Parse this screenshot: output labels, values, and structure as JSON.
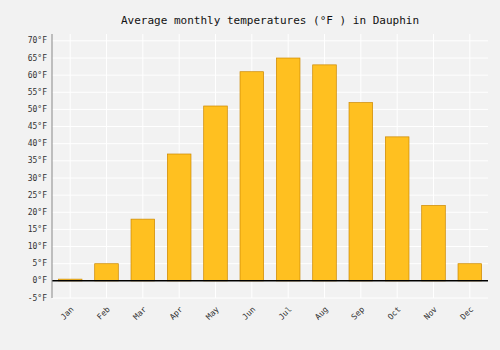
{
  "chart_data": {
    "type": "bar",
    "title": "Average monthly temperatures (°F ) in Dauphin",
    "categories": [
      "Jan",
      "Feb",
      "Mar",
      "Apr",
      "May",
      "Jun",
      "Jul",
      "Aug",
      "Sep",
      "Oct",
      "Nov",
      "Dec"
    ],
    "values": [
      0.5,
      5.0,
      18.0,
      37.0,
      51.0,
      61.0,
      65.0,
      63.0,
      52.0,
      42.0,
      22.0,
      5.0
    ],
    "color": "#FFC020",
    "ylim": [
      -5,
      72
    ],
    "yticks": [
      {
        "value": -5,
        "label": "-5°F"
      },
      {
        "value": 0,
        "label": "0°F"
      },
      {
        "value": 5,
        "label": "5°F"
      },
      {
        "value": 10,
        "label": "10°F"
      },
      {
        "value": 15,
        "label": "15°F"
      },
      {
        "value": 20,
        "label": "20°F"
      },
      {
        "value": 25,
        "label": "25°F"
      },
      {
        "value": 30,
        "label": "30°F"
      },
      {
        "value": 35,
        "label": "35°F"
      },
      {
        "value": 40,
        "label": "40°F"
      },
      {
        "value": 45,
        "label": "45°F"
      },
      {
        "value": 50,
        "label": "50°F"
      },
      {
        "value": 55,
        "label": "55°F"
      },
      {
        "value": 60,
        "label": "60°F"
      },
      {
        "value": 65,
        "label": "65°F"
      },
      {
        "value": 70,
        "label": "70°F"
      }
    ],
    "grid": true
  }
}
